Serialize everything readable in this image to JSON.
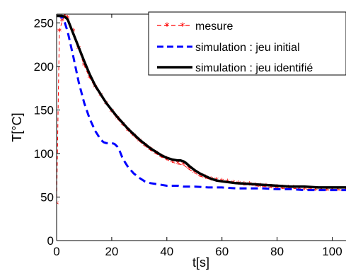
{
  "chart_data": {
    "type": "line",
    "title": "",
    "xlabel": "t[s]",
    "ylabel": "T[°C]",
    "xlim": [
      0,
      105
    ],
    "ylim": [
      0,
      260
    ],
    "xticks": [
      0,
      20,
      40,
      60,
      80,
      100
    ],
    "xtick_labels": [
      "0",
      "20",
      "40",
      "60",
      "80",
      "100"
    ],
    "yticks": [
      0,
      50,
      100,
      150,
      200,
      250
    ],
    "ytick_labels": [
      "0",
      "50",
      "100",
      "150",
      "200",
      "250"
    ],
    "grid": false,
    "legend_position": "top-right",
    "series": [
      {
        "name": "mesure",
        "color": "#ff0000",
        "style": "dashed-star",
        "x": [
          0,
          1,
          2,
          3,
          4,
          6,
          8,
          10,
          12,
          14,
          16,
          18,
          20,
          22,
          24,
          26,
          28,
          30,
          32,
          34,
          36,
          38,
          40,
          42,
          44,
          46,
          48,
          50,
          52,
          54,
          56,
          58,
          60,
          62,
          64,
          66,
          68,
          70,
          72,
          74,
          76,
          78,
          80,
          82,
          84,
          86,
          88,
          90,
          92,
          94,
          96,
          98,
          100,
          102,
          105
        ],
        "y": [
          42,
          240,
          252,
          258,
          255,
          240,
          220,
          201,
          187,
          176,
          166,
          157,
          148,
          140,
          133,
          126,
          120,
          114,
          109,
          104,
          100,
          96,
          93,
          90,
          88,
          87,
          82,
          78,
          74,
          72,
          70,
          69,
          68,
          67,
          66,
          65,
          64,
          64,
          63,
          62,
          62,
          61,
          61,
          60,
          60,
          60,
          59,
          59,
          59,
          58,
          58,
          58,
          58,
          58,
          58
        ]
      },
      {
        "name": "simulation : jeu initial",
        "color": "#0000ff",
        "style": "dashed",
        "x": [
          0,
          1,
          2,
          3,
          4,
          6,
          8,
          10,
          12,
          14,
          16,
          17,
          18,
          19,
          20,
          21,
          22,
          23,
          24,
          26,
          28,
          30,
          32,
          34,
          36,
          38,
          40,
          42,
          44,
          46,
          48,
          50,
          55,
          60,
          65,
          70,
          75,
          80,
          85,
          90,
          95,
          100,
          105
        ],
        "y": [
          258,
          258,
          256,
          250,
          240,
          212,
          182,
          158,
          140,
          126,
          116,
          113,
          112,
          112,
          112,
          111,
          108,
          102,
          94,
          84,
          77,
          72,
          68,
          66,
          65,
          64,
          63,
          63,
          63,
          62,
          62,
          62,
          61,
          61,
          60,
          60,
          60,
          59,
          59,
          58,
          58,
          58,
          58
        ]
      },
      {
        "name": "simulation : jeu identifié",
        "color": "#000000",
        "style": "solid",
        "x": [
          0,
          1,
          2,
          3,
          4,
          5,
          6,
          8,
          10,
          12,
          14,
          16,
          18,
          20,
          22,
          24,
          26,
          28,
          30,
          32,
          34,
          36,
          38,
          40,
          42,
          44,
          45,
          46,
          47,
          48,
          50,
          52,
          54,
          56,
          58,
          60,
          65,
          70,
          75,
          80,
          85,
          90,
          95,
          100,
          105
        ],
        "y": [
          258,
          258,
          258,
          257,
          254,
          246,
          238,
          222,
          206,
          191,
          178,
          168,
          158,
          150,
          142,
          135,
          128,
          122,
          116,
          111,
          106,
          102,
          98,
          95,
          93,
          92,
          92,
          91,
          89,
          86,
          81,
          77,
          74,
          71,
          69,
          68,
          66,
          65,
          64,
          63,
          62,
          62,
          61,
          61,
          61
        ]
      }
    ]
  }
}
